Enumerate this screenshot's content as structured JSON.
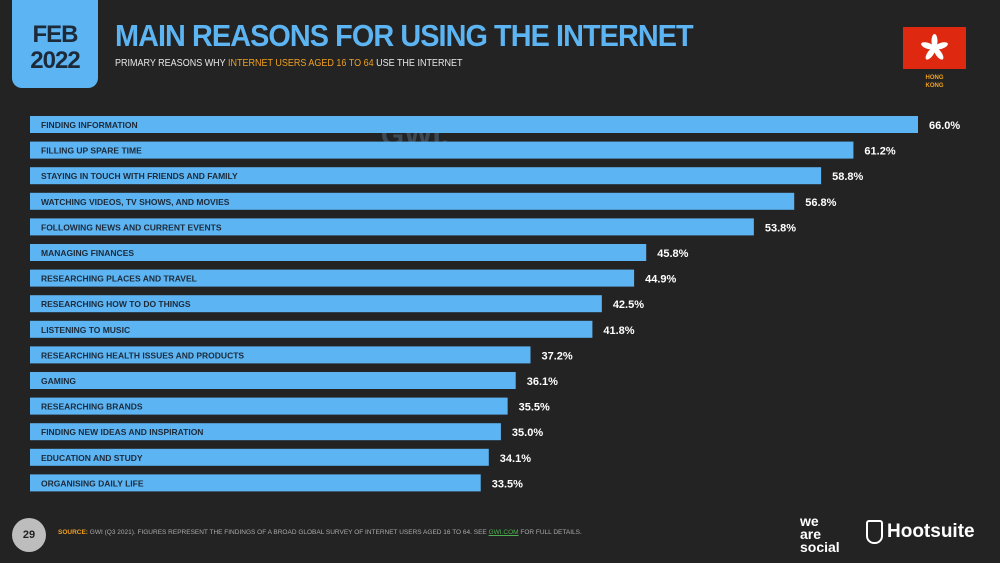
{
  "header": {
    "month": "FEB",
    "year": "2022",
    "title": "MAIN REASONS FOR USING THE INTERNET",
    "subtitle_pre": "PRIMARY REASONS WHY ",
    "subtitle_hl": "INTERNET USERS AGED 16 TO 64",
    "subtitle_post": " USE THE INTERNET",
    "country_line1": "HONG",
    "country_line2": "KONG"
  },
  "watermark": "GWI.",
  "footer": {
    "page": "29",
    "source_label": "SOURCE:",
    "source_text": " GWI (Q3 2021). FIGURES REPRESENT THE FINDINGS OF A BROAD GLOBAL SURVEY OF INTERNET USERS AGED 16 TO 64. SEE ",
    "source_link": "GWI.COM",
    "source_end": " FOR FULL DETAILS.",
    "brand1": "we are social",
    "brand2": "Hootsuite"
  },
  "chart_data": {
    "type": "bar",
    "orientation": "horizontal",
    "xlim": [
      0,
      66
    ],
    "grid": false,
    "bar_color": "#5db4f2",
    "categories": [
      "FINDING INFORMATION",
      "FILLING UP SPARE TIME",
      "STAYING IN TOUCH WITH FRIENDS AND FAMILY",
      "WATCHING VIDEOS, TV SHOWS, AND MOVIES",
      "FOLLOWING NEWS AND CURRENT EVENTS",
      "MANAGING FINANCES",
      "RESEARCHING PLACES AND TRAVEL",
      "RESEARCHING HOW TO DO THINGS",
      "LISTENING TO MUSIC",
      "RESEARCHING HEALTH ISSUES AND PRODUCTS",
      "GAMING",
      "RESEARCHING BRANDS",
      "FINDING NEW IDEAS AND INSPIRATION",
      "EDUCATION AND STUDY",
      "ORGANISING DAILY LIFE"
    ],
    "values": [
      66.0,
      61.2,
      58.8,
      56.8,
      53.8,
      45.8,
      44.9,
      42.5,
      41.8,
      37.2,
      36.1,
      35.5,
      35.0,
      34.1,
      33.5
    ],
    "labels": [
      "66.0%",
      "61.2%",
      "58.8%",
      "56.8%",
      "53.8%",
      "45.8%",
      "44.9%",
      "42.5%",
      "41.8%",
      "37.2%",
      "36.1%",
      "35.5%",
      "35.0%",
      "34.1%",
      "33.5%"
    ]
  }
}
